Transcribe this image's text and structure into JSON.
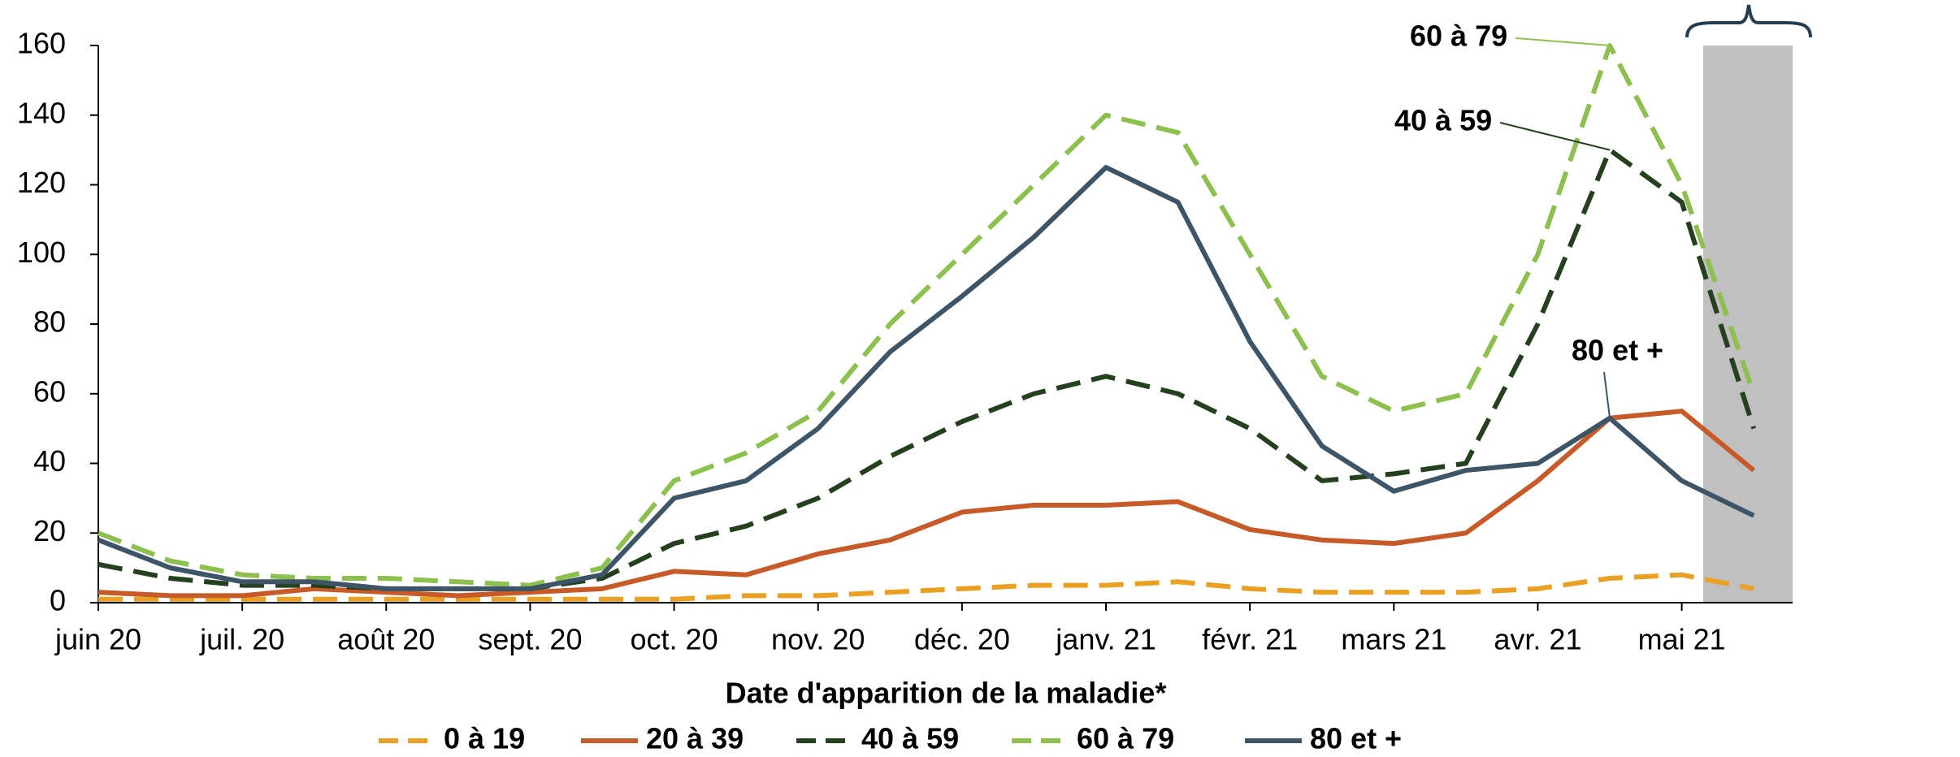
{
  "chart_data": {
    "type": "line",
    "x_label": "Date d'apparition de la maladie*",
    "x": [
      0,
      0.5,
      1,
      1.5,
      2,
      2.5,
      3,
      3.5,
      4,
      4.5,
      5,
      5.5,
      6,
      6.5,
      7,
      7.5,
      8,
      8.5,
      9,
      9.5,
      10,
      10.5,
      11,
      11.5
    ],
    "xlim": [
      0,
      11.77
    ],
    "xticks": [
      {
        "value": 0,
        "label": "juin 20"
      },
      {
        "value": 1,
        "label": "juil. 20"
      },
      {
        "value": 2,
        "label": "août 20"
      },
      {
        "value": 3,
        "label": "sept. 20"
      },
      {
        "value": 4,
        "label": "oct. 20"
      },
      {
        "value": 5,
        "label": "nov. 20"
      },
      {
        "value": 6,
        "label": "déc. 20"
      },
      {
        "value": 7,
        "label": "janv. 21"
      },
      {
        "value": 8,
        "label": "févr. 21"
      },
      {
        "value": 9,
        "label": "mars 21"
      },
      {
        "value": 10,
        "label": "avr. 21"
      },
      {
        "value": 11,
        "label": "mai 21"
      }
    ],
    "ylim": [
      0,
      160
    ],
    "yticks": [
      0,
      20,
      40,
      60,
      80,
      100,
      120,
      140,
      160
    ],
    "grid": false,
    "legend": "bottom",
    "series": [
      {
        "name": "0 à 19",
        "color": "#e9a023",
        "dashed": true,
        "values": [
          1,
          1,
          1,
          1,
          1,
          1,
          1,
          1,
          1,
          2,
          2,
          3,
          4,
          5,
          5,
          6,
          4,
          3,
          3,
          3,
          4,
          7,
          8,
          4
        ]
      },
      {
        "name": "20 à 39",
        "color": "#c65a28",
        "dashed": false,
        "values": [
          3,
          2,
          2,
          4,
          3,
          2,
          3,
          4,
          9,
          8,
          14,
          18,
          26,
          28,
          28,
          29,
          21,
          18,
          17,
          20,
          35,
          53,
          55,
          38
        ]
      },
      {
        "name": "40 à 59",
        "color": "#24401e",
        "dashed": true,
        "values": [
          11,
          7,
          5,
          5,
          4,
          4,
          4,
          7,
          17,
          22,
          30,
          42,
          52,
          60,
          65,
          60,
          50,
          35,
          37,
          40,
          80,
          130,
          115,
          50
        ]
      },
      {
        "name": "60 à 79",
        "color": "#8dc04f",
        "dashed": true,
        "values": [
          20,
          12,
          8,
          7,
          7,
          6,
          5,
          10,
          35,
          43,
          55,
          80,
          100,
          120,
          140,
          135,
          100,
          65,
          55,
          60,
          100,
          160,
          120,
          60
        ]
      },
      {
        "name": "80 et +",
        "color": "#3d5566",
        "dashed": false,
        "values": [
          18,
          10,
          6,
          6,
          4,
          4,
          4,
          8,
          30,
          35,
          50,
          72,
          88,
          105,
          125,
          115,
          75,
          45,
          32,
          38,
          40,
          53,
          35,
          25
        ]
      }
    ]
  }
}
